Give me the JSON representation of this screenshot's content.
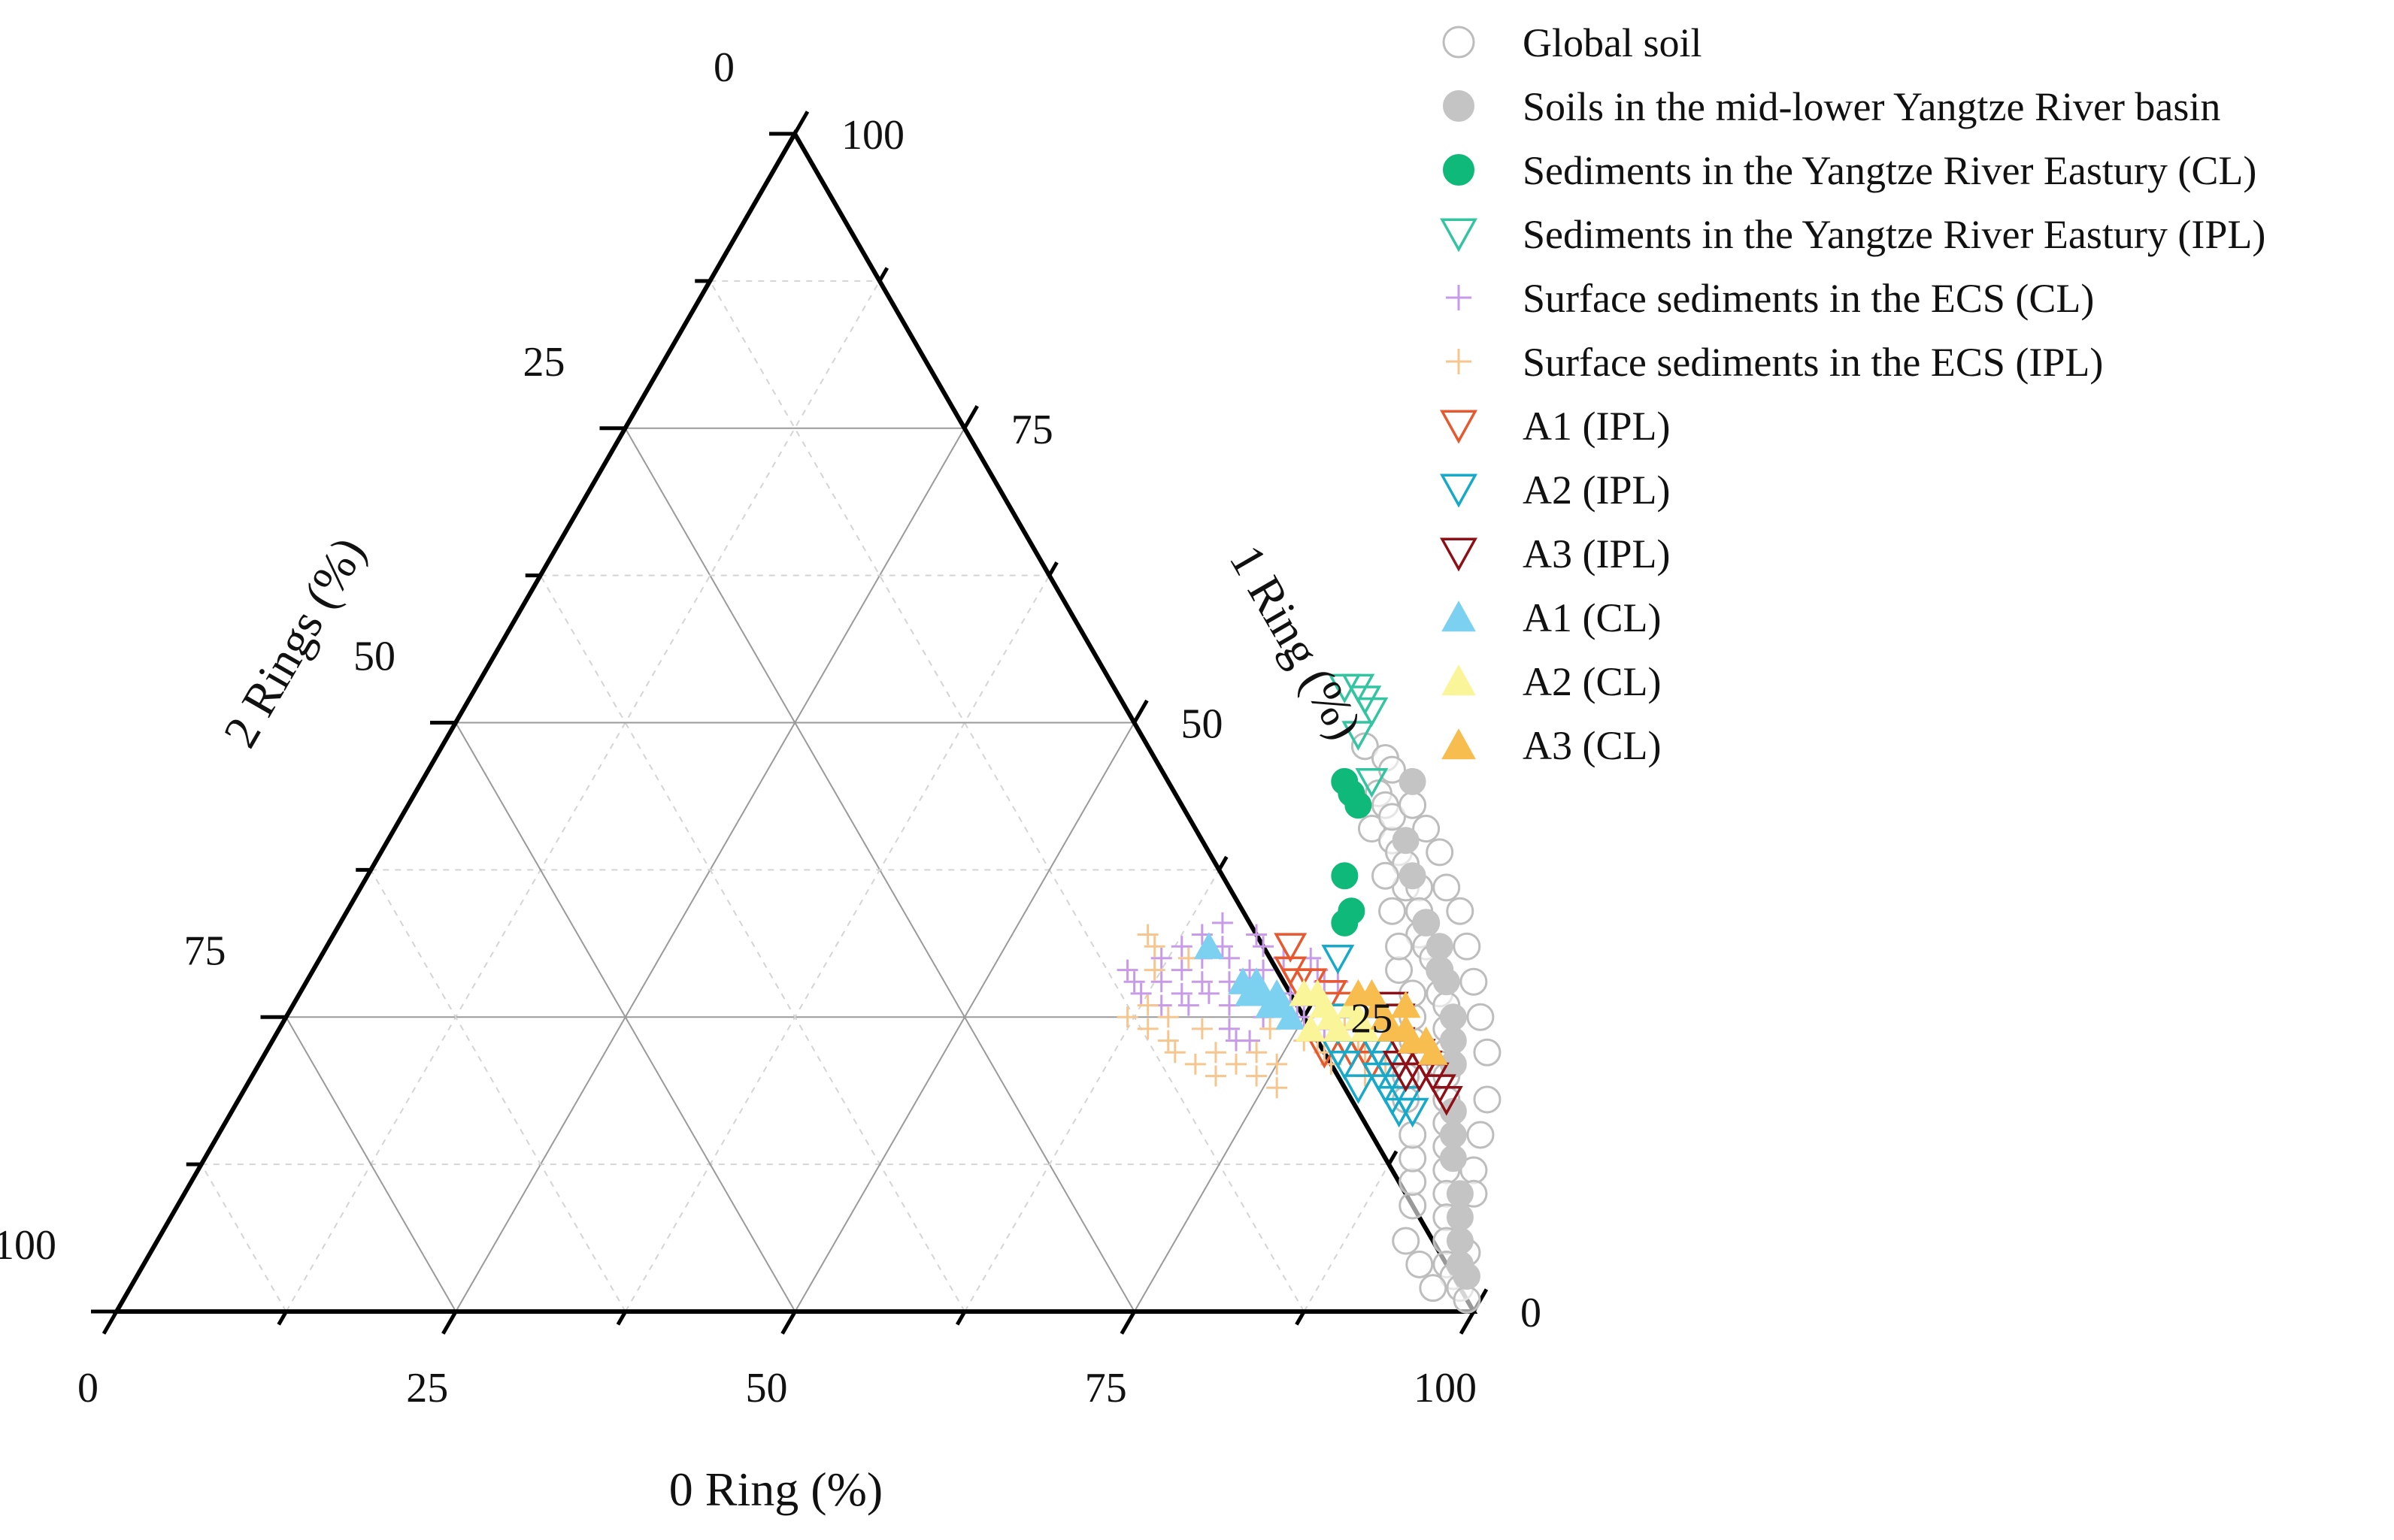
{
  "chart_data": {
    "type": "ternary-scatter",
    "title": "",
    "axes": {
      "bottom": {
        "label": "0 Ring (%)",
        "ticks": [
          0,
          25,
          50,
          75,
          100
        ]
      },
      "left": {
        "label": "2 Rings (%)",
        "ticks": [
          0,
          25,
          50,
          75,
          100
        ]
      },
      "right": {
        "label": "1 Ring (%)",
        "ticks": [
          0,
          25,
          50,
          75,
          100
        ]
      }
    },
    "grid": true,
    "legend_position": "top-right",
    "series": [
      {
        "name": "Global soil",
        "marker": "circle-open",
        "color": "#bdbdbd",
        "points": [
          [
            68,
            48
          ],
          [
            70,
            47
          ],
          [
            71,
            44
          ],
          [
            72,
            43
          ],
          [
            72,
            41
          ],
          [
            74,
            40
          ],
          [
            75,
            39
          ],
          [
            76,
            38
          ],
          [
            77,
            36
          ],
          [
            78,
            36
          ],
          [
            79,
            34
          ],
          [
            80,
            33
          ],
          [
            80,
            32
          ],
          [
            81,
            31
          ],
          [
            82,
            30
          ],
          [
            83,
            29
          ],
          [
            84,
            27
          ],
          [
            85,
            26
          ],
          [
            86,
            24
          ],
          [
            87,
            22
          ],
          [
            87,
            21
          ],
          [
            88,
            20
          ],
          [
            89,
            18
          ],
          [
            90,
            16
          ],
          [
            91,
            14
          ],
          [
            92,
            12
          ],
          [
            93,
            10
          ],
          [
            94,
            8
          ],
          [
            95,
            6
          ],
          [
            96,
            4
          ],
          [
            97,
            3
          ],
          [
            98,
            2
          ],
          [
            99,
            1
          ],
          [
            96,
            2
          ],
          [
            94,
            4
          ],
          [
            92,
            6
          ],
          [
            91,
            9
          ],
          [
            90,
            11
          ],
          [
            89,
            13
          ],
          [
            88,
            15
          ],
          [
            86,
            18
          ],
          [
            85,
            20
          ],
          [
            84,
            23
          ],
          [
            83,
            25
          ],
          [
            82,
            27
          ],
          [
            80,
            29
          ],
          [
            79,
            31
          ],
          [
            77,
            34
          ],
          [
            75,
            37
          ],
          [
            73,
            42
          ],
          [
            71,
            46
          ],
          [
            74,
            43
          ],
          [
            76,
            41
          ],
          [
            78,
            39
          ],
          [
            80,
            36
          ],
          [
            82,
            34
          ],
          [
            84,
            31
          ],
          [
            86,
            28
          ],
          [
            88,
            25
          ],
          [
            90,
            22
          ],
          [
            92,
            18
          ],
          [
            93,
            15
          ],
          [
            94,
            12
          ],
          [
            95,
            10
          ],
          [
            97,
            5
          ]
        ]
      },
      {
        "name": "Soils in the mid-lower Yangtze River basin",
        "marker": "circle",
        "color": "#c4c4c4",
        "points": [
          [
            73,
            45
          ],
          [
            75,
            40
          ],
          [
            77,
            37
          ],
          [
            80,
            33
          ],
          [
            82,
            31
          ],
          [
            84,
            28
          ],
          [
            86,
            25
          ],
          [
            88,
            21
          ],
          [
            90,
            17
          ],
          [
            92,
            13
          ],
          [
            94,
            10
          ],
          [
            96,
            6
          ],
          [
            97,
            4
          ],
          [
            98,
            3
          ],
          [
            95,
            8
          ],
          [
            91,
            15
          ],
          [
            87,
            23
          ],
          [
            83,
            29
          ]
        ]
      },
      {
        "name": "Sediments in the Yangtze River Eastury (CL)",
        "marker": "circle",
        "color": "#0fb979",
        "points": [
          [
            68,
            45
          ],
          [
            69,
            44
          ],
          [
            70,
            43
          ],
          [
            72,
            37
          ],
          [
            74,
            34
          ],
          [
            74,
            33
          ]
        ]
      },
      {
        "name": "Sediments in the Yangtze River Eastury (IPL)",
        "marker": "triangle-down-open",
        "color": "#33c4a0",
        "points": [
          [
            64,
            53
          ],
          [
            65,
            53
          ],
          [
            66,
            52
          ],
          [
            67,
            51
          ],
          [
            67,
            49
          ],
          [
            70,
            45
          ]
        ]
      },
      {
        "name": "Surface sediments in the ECS (CL)",
        "marker": "plus",
        "color": "#c89be8",
        "points": [
          [
            62,
            30
          ],
          [
            63,
            31
          ],
          [
            64,
            29
          ],
          [
            65,
            30
          ],
          [
            66,
            28
          ],
          [
            62,
            27
          ],
          [
            63,
            28
          ],
          [
            64,
            26
          ],
          [
            65,
            27
          ],
          [
            66,
            26
          ],
          [
            67,
            27
          ],
          [
            68,
            28
          ],
          [
            69,
            26
          ],
          [
            70,
            29
          ],
          [
            71,
            27
          ],
          [
            72,
            25
          ],
          [
            73,
            27
          ],
          [
            74,
            26
          ],
          [
            75,
            25
          ],
          [
            76,
            26
          ],
          [
            77,
            24
          ],
          [
            70,
            24
          ],
          [
            71,
            23
          ],
          [
            72,
            23
          ],
          [
            66,
            31
          ],
          [
            68,
            32
          ],
          [
            69,
            31
          ],
          [
            67,
            30
          ],
          [
            73,
            30
          ],
          [
            74,
            29
          ],
          [
            75,
            28
          ],
          [
            64,
            32
          ],
          [
            65,
            33
          ],
          [
            61,
            28
          ],
          [
            60,
            29
          ],
          [
            71,
            30
          ],
          [
            69,
            29
          ],
          [
            76,
            28
          ]
        ]
      },
      {
        "name": "Surface sediments in the ECS (IPL)",
        "marker": "plus",
        "color": "#f7c68e",
        "points": [
          [
            60,
            32
          ],
          [
            61,
            31
          ],
          [
            62,
            25
          ],
          [
            63,
            26
          ],
          [
            64,
            24
          ],
          [
            66,
            23
          ],
          [
            67,
            22
          ],
          [
            68,
            24
          ],
          [
            70,
            22
          ],
          [
            72,
            21
          ],
          [
            73,
            22
          ],
          [
            74,
            20
          ],
          [
            75,
            21
          ],
          [
            76,
            19
          ],
          [
            77,
            23
          ],
          [
            78,
            22
          ],
          [
            79,
            21
          ],
          [
            80,
            23
          ],
          [
            81,
            22
          ],
          [
            82,
            20
          ],
          [
            83,
            21
          ],
          [
            65,
            25
          ],
          [
            69,
            21
          ],
          [
            71,
            20
          ],
          [
            78,
            25
          ],
          [
            80,
            26
          ],
          [
            62,
            29
          ],
          [
            64,
            30
          ],
          [
            76,
            23
          ],
          [
            73,
            24
          ]
        ]
      },
      {
        "name": "A1 (IPL)",
        "marker": "triangle-down-open",
        "color": "#e8582e",
        "points": [
          [
            71,
            31
          ],
          [
            72,
            29
          ],
          [
            73,
            28
          ],
          [
            74,
            28
          ],
          [
            76,
            27
          ],
          [
            77,
            26
          ],
          [
            78,
            25
          ],
          [
            79,
            24
          ],
          [
            80,
            23
          ],
          [
            80,
            22
          ],
          [
            81,
            22
          ],
          [
            82,
            21
          ],
          [
            78,
            22
          ],
          [
            79,
            23
          ]
        ]
      },
      {
        "name": "A2 (IPL)",
        "marker": "triangle-down-open",
        "color": "#17a9c9",
        "points": [
          [
            75,
            30
          ],
          [
            77,
            25
          ],
          [
            78,
            24
          ],
          [
            80,
            24
          ],
          [
            81,
            23
          ],
          [
            82,
            22
          ],
          [
            83,
            21
          ],
          [
            83,
            20
          ],
          [
            84,
            20
          ],
          [
            85,
            18
          ],
          [
            86,
            18
          ],
          [
            86,
            17
          ],
          [
            87,
            17
          ],
          [
            82,
            19
          ],
          [
            84,
            19
          ],
          [
            80,
            21
          ],
          [
            79,
            22
          ]
        ]
      },
      {
        "name": "A3 (IPL)",
        "marker": "triangle-down-open",
        "color": "#8e1016",
        "points": [
          [
            81,
            26
          ],
          [
            82,
            25
          ],
          [
            83,
            23
          ],
          [
            84,
            22
          ],
          [
            85,
            22
          ],
          [
            86,
            21
          ],
          [
            86,
            20
          ],
          [
            87,
            20
          ],
          [
            88,
            19
          ],
          [
            89,
            18
          ],
          [
            85,
            20
          ],
          [
            84,
            21
          ]
        ]
      },
      {
        "name": "A1 (CL)",
        "marker": "triangle",
        "color": "#7dd1f0",
        "points": [
          [
            65,
            31
          ],
          [
            69,
            28
          ],
          [
            70,
            27
          ],
          [
            71,
            27
          ],
          [
            72,
            26
          ],
          [
            73,
            26
          ],
          [
            74,
            25
          ],
          [
            72,
            27
          ],
          [
            70,
            28
          ]
        ]
      },
      {
        "name": "A2 (CL)",
        "marker": "triangle",
        "color": "#fbf59a",
        "points": [
          [
            74,
            27
          ],
          [
            75,
            27
          ],
          [
            76,
            26
          ],
          [
            77,
            25
          ],
          [
            78,
            24
          ],
          [
            79,
            25
          ],
          [
            80,
            24
          ],
          [
            76,
            24
          ],
          [
            78,
            26
          ]
        ]
      },
      {
        "name": "A3 (CL)",
        "marker": "triangle",
        "color": "#f7bd4f",
        "points": [
          [
            78,
            27
          ],
          [
            79,
            27
          ],
          [
            80,
            26
          ],
          [
            81,
            25
          ],
          [
            82,
            24
          ],
          [
            83,
            24
          ],
          [
            84,
            23
          ],
          [
            85,
            23
          ],
          [
            86,
            22
          ],
          [
            82,
            26
          ]
        ]
      }
    ]
  }
}
